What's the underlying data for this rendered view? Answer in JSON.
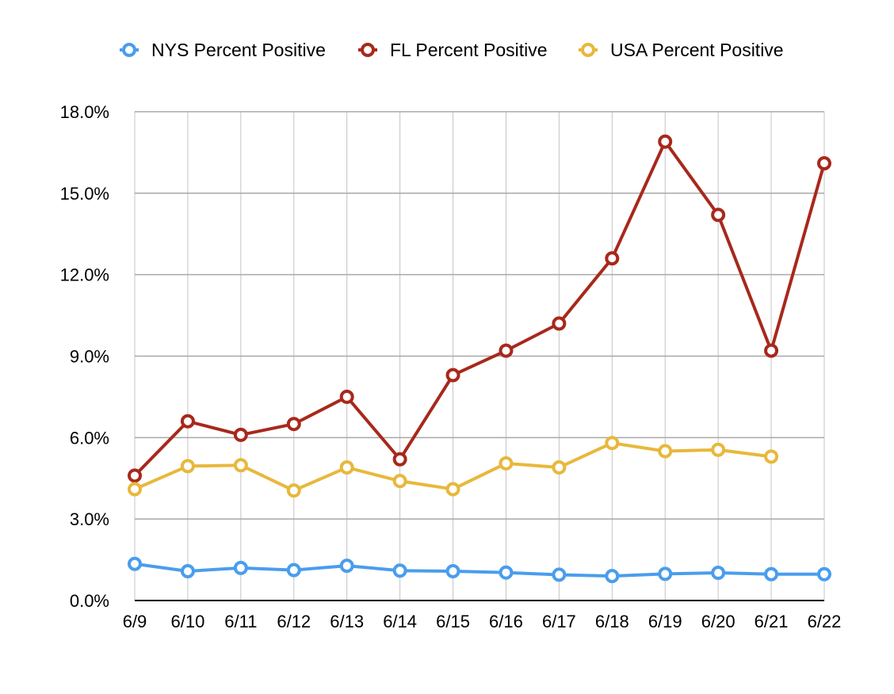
{
  "chart_data": {
    "type": "line",
    "title": "",
    "xlabel": "",
    "ylabel": "",
    "categories": [
      "6/9",
      "6/10",
      "6/11",
      "6/12",
      "6/13",
      "6/14",
      "6/15",
      "6/16",
      "6/17",
      "6/18",
      "6/19",
      "6/20",
      "6/21",
      "6/22"
    ],
    "ylim": [
      0,
      18
    ],
    "y_ticks": [
      0,
      3,
      6,
      9,
      12,
      15,
      18
    ],
    "y_tick_labels": [
      "0.0%",
      "3.0%",
      "6.0%",
      "9.0%",
      "12.0%",
      "15.0%",
      "18.0%"
    ],
    "grid": true,
    "legend_position": "top",
    "series": [
      {
        "name": "NYS Percent Positive",
        "color": "#4a9ded",
        "values": [
          1.35,
          1.08,
          1.2,
          1.12,
          1.28,
          1.1,
          1.08,
          1.03,
          0.95,
          0.9,
          0.98,
          1.02,
          0.97,
          0.97
        ]
      },
      {
        "name": "FL Percent Positive",
        "color": "#a8281c",
        "values": [
          4.6,
          6.6,
          6.1,
          6.5,
          7.5,
          5.2,
          8.3,
          9.2,
          10.2,
          12.6,
          16.9,
          14.2,
          9.2,
          16.1
        ]
      },
      {
        "name": "USA Percent Positive",
        "color": "#e8b83c",
        "values": [
          4.1,
          4.95,
          4.98,
          4.05,
          4.9,
          4.4,
          4.1,
          5.05,
          4.9,
          5.8,
          5.5,
          5.55,
          5.3,
          null
        ]
      }
    ]
  }
}
